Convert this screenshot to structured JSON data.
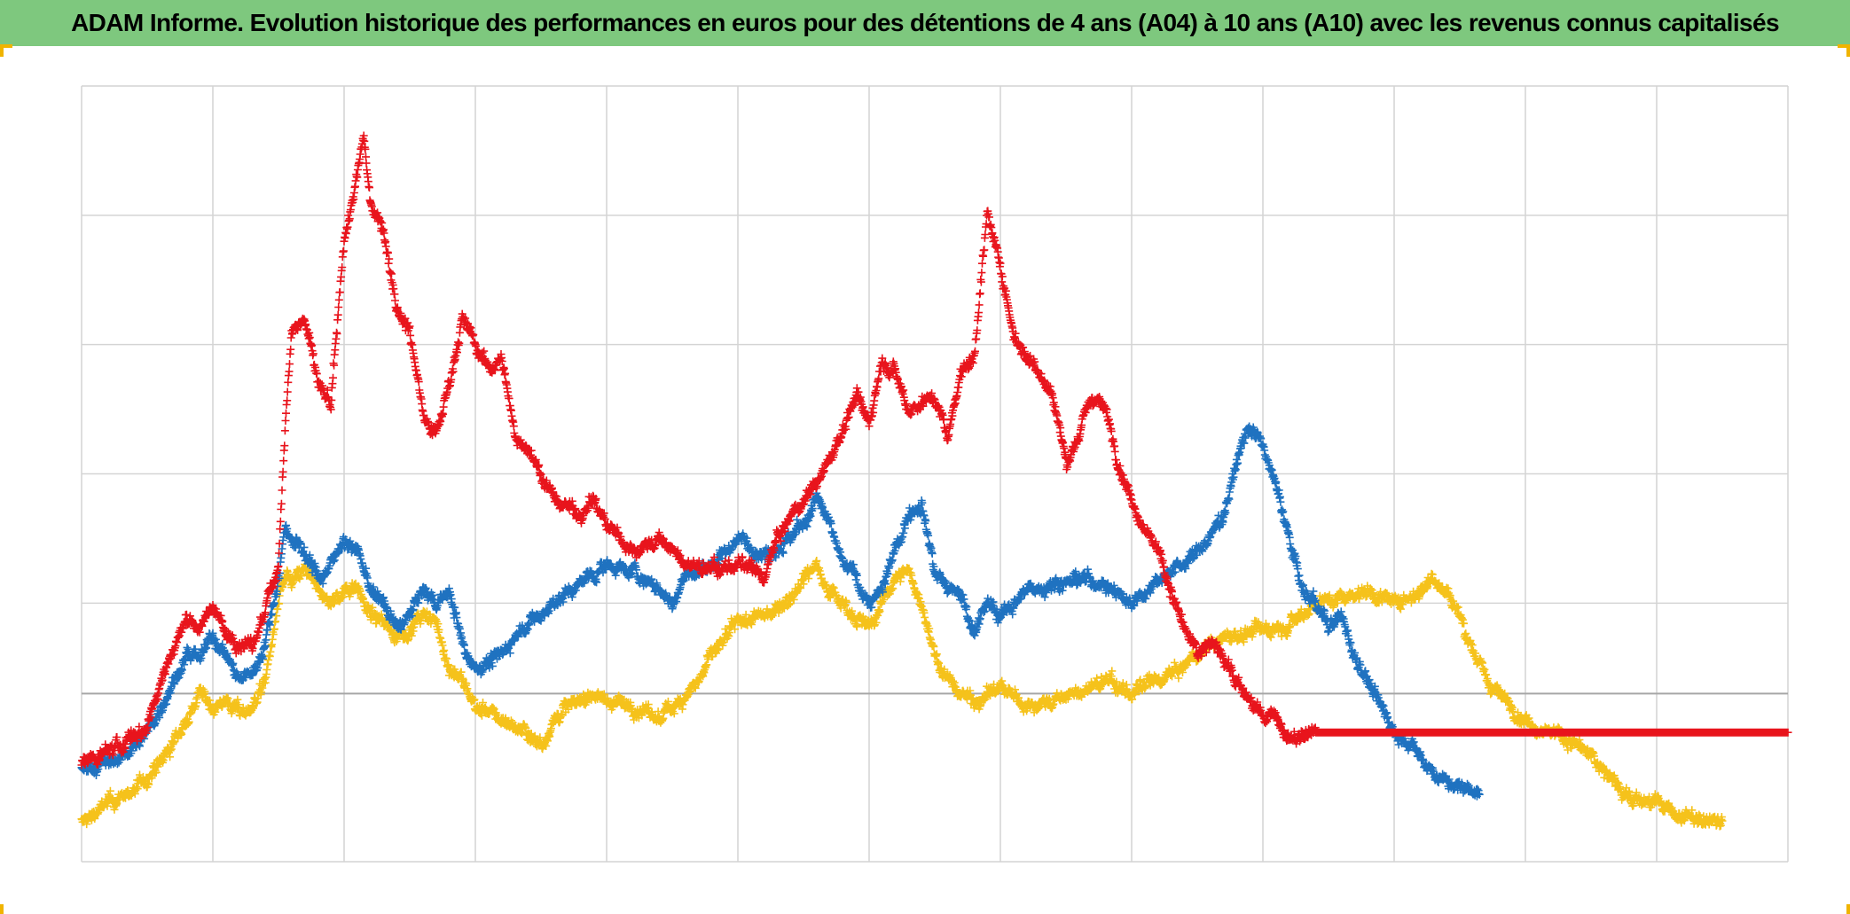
{
  "chart_data": {
    "type": "scatter",
    "title": "ADAM Informe. Evolution historique des performances en euros pour des détentions de 4 ans (A04) à 10 ans (A10) avec les revenus connus capitalisés",
    "xlabel": "",
    "ylabel": "",
    "xlim": [
      0,
      13
    ],
    "ylim": [
      -1.3,
      4.7
    ],
    "baseline_y": 0,
    "grid": true,
    "legend": "none",
    "marker": "+",
    "series": [
      {
        "name": "red",
        "color": "#e8141c",
        "points": [
          [
            0.0,
            -0.55
          ],
          [
            0.3,
            -0.4
          ],
          [
            0.5,
            -0.25
          ],
          [
            0.6,
            0.1
          ],
          [
            0.8,
            0.6
          ],
          [
            0.9,
            0.5
          ],
          [
            1.0,
            0.7
          ],
          [
            1.1,
            0.45
          ],
          [
            1.2,
            0.4
          ],
          [
            1.3,
            0.35
          ],
          [
            1.4,
            0.65
          ],
          [
            1.5,
            1.0
          ],
          [
            1.55,
            2.1
          ],
          [
            1.6,
            2.8
          ],
          [
            1.7,
            2.9
          ],
          [
            1.8,
            2.4
          ],
          [
            1.9,
            2.2
          ],
          [
            2.0,
            3.5
          ],
          [
            2.1,
            4.0
          ],
          [
            2.15,
            4.3
          ],
          [
            2.2,
            3.8
          ],
          [
            2.3,
            3.6
          ],
          [
            2.4,
            3.0
          ],
          [
            2.5,
            2.8
          ],
          [
            2.6,
            2.2
          ],
          [
            2.7,
            2.0
          ],
          [
            2.8,
            2.4
          ],
          [
            2.9,
            2.9
          ],
          [
            3.0,
            2.7
          ],
          [
            3.1,
            2.5
          ],
          [
            3.2,
            2.6
          ],
          [
            3.3,
            2.0
          ],
          [
            3.4,
            1.9
          ],
          [
            3.5,
            1.7
          ],
          [
            3.6,
            1.5
          ],
          [
            3.8,
            1.4
          ],
          [
            3.9,
            1.5
          ],
          [
            4.0,
            1.3
          ],
          [
            4.2,
            1.1
          ],
          [
            4.4,
            1.2
          ],
          [
            4.6,
            1.0
          ],
          [
            4.8,
            0.95
          ],
          [
            5.0,
            1.0
          ],
          [
            5.2,
            0.9
          ],
          [
            5.3,
            1.2
          ],
          [
            5.5,
            1.5
          ],
          [
            5.7,
            1.8
          ],
          [
            5.9,
            2.3
          ],
          [
            6.0,
            2.1
          ],
          [
            6.1,
            2.6
          ],
          [
            6.2,
            2.5
          ],
          [
            6.3,
            2.2
          ],
          [
            6.5,
            2.3
          ],
          [
            6.6,
            2.0
          ],
          [
            6.7,
            2.5
          ],
          [
            6.8,
            2.6
          ],
          [
            6.85,
            3.2
          ],
          [
            6.9,
            3.7
          ],
          [
            7.0,
            3.3
          ],
          [
            7.1,
            2.8
          ],
          [
            7.2,
            2.6
          ],
          [
            7.3,
            2.5
          ],
          [
            7.4,
            2.3
          ],
          [
            7.5,
            1.8
          ],
          [
            7.6,
            2.0
          ],
          [
            7.7,
            2.3
          ],
          [
            7.8,
            2.2
          ],
          [
            7.9,
            1.8
          ],
          [
            8.0,
            1.5
          ],
          [
            8.1,
            1.3
          ],
          [
            8.2,
            1.1
          ],
          [
            8.3,
            0.8
          ],
          [
            8.4,
            0.5
          ],
          [
            8.5,
            0.3
          ],
          [
            8.6,
            0.4
          ],
          [
            8.7,
            0.3
          ],
          [
            8.8,
            0.1
          ],
          [
            8.9,
            -0.05
          ],
          [
            9.0,
            -0.2
          ],
          [
            9.1,
            -0.15
          ],
          [
            9.2,
            -0.38
          ],
          [
            9.3,
            -0.33
          ],
          [
            9.4,
            -0.3
          ],
          [
            13.0,
            -0.3
          ]
        ]
      },
      {
        "name": "blue",
        "color": "#1f72c0",
        "points": [
          [
            0.0,
            -0.6
          ],
          [
            0.3,
            -0.5
          ],
          [
            0.5,
            -0.3
          ],
          [
            0.6,
            -0.1
          ],
          [
            0.8,
            0.3
          ],
          [
            0.9,
            0.25
          ],
          [
            1.0,
            0.45
          ],
          [
            1.1,
            0.3
          ],
          [
            1.2,
            0.1
          ],
          [
            1.3,
            0.15
          ],
          [
            1.4,
            0.4
          ],
          [
            1.5,
            0.9
          ],
          [
            1.55,
            1.3
          ],
          [
            1.6,
            1.2
          ],
          [
            1.7,
            1.1
          ],
          [
            1.8,
            0.9
          ],
          [
            1.9,
            1.0
          ],
          [
            2.0,
            1.2
          ],
          [
            2.1,
            1.1
          ],
          [
            2.2,
            0.8
          ],
          [
            2.3,
            0.7
          ],
          [
            2.4,
            0.5
          ],
          [
            2.5,
            0.6
          ],
          [
            2.6,
            0.8
          ],
          [
            2.7,
            0.7
          ],
          [
            2.8,
            0.8
          ],
          [
            2.9,
            0.4
          ],
          [
            3.0,
            0.2
          ],
          [
            3.1,
            0.25
          ],
          [
            3.2,
            0.3
          ],
          [
            3.3,
            0.45
          ],
          [
            3.4,
            0.55
          ],
          [
            3.5,
            0.6
          ],
          [
            3.6,
            0.7
          ],
          [
            3.8,
            0.85
          ],
          [
            4.0,
            1.0
          ],
          [
            4.2,
            0.95
          ],
          [
            4.4,
            0.8
          ],
          [
            4.5,
            0.7
          ],
          [
            4.6,
            0.9
          ],
          [
            4.8,
            1.0
          ],
          [
            5.0,
            1.2
          ],
          [
            5.2,
            1.1
          ],
          [
            5.4,
            1.2
          ],
          [
            5.5,
            1.3
          ],
          [
            5.6,
            1.5
          ],
          [
            5.7,
            1.3
          ],
          [
            5.8,
            1.0
          ],
          [
            5.9,
            0.9
          ],
          [
            6.0,
            0.7
          ],
          [
            6.1,
            0.8
          ],
          [
            6.2,
            1.1
          ],
          [
            6.3,
            1.4
          ],
          [
            6.4,
            1.5
          ],
          [
            6.5,
            0.95
          ],
          [
            6.6,
            0.8
          ],
          [
            6.7,
            0.75
          ],
          [
            6.8,
            0.5
          ],
          [
            6.9,
            0.7
          ],
          [
            7.0,
            0.6
          ],
          [
            7.2,
            0.8
          ],
          [
            7.4,
            0.85
          ],
          [
            7.6,
            0.9
          ],
          [
            7.8,
            0.85
          ],
          [
            8.0,
            0.7
          ],
          [
            8.2,
            0.9
          ],
          [
            8.4,
            1.0
          ],
          [
            8.6,
            1.2
          ],
          [
            8.7,
            1.4
          ],
          [
            8.8,
            1.8
          ],
          [
            8.9,
            2.1
          ],
          [
            9.0,
            1.9
          ],
          [
            9.1,
            1.6
          ],
          [
            9.2,
            1.2
          ],
          [
            9.3,
            0.8
          ],
          [
            9.4,
            0.7
          ],
          [
            9.5,
            0.5
          ],
          [
            9.6,
            0.6
          ],
          [
            9.7,
            0.3
          ],
          [
            9.8,
            0.1
          ],
          [
            9.9,
            -0.1
          ],
          [
            10.0,
            -0.3
          ],
          [
            10.1,
            -0.35
          ],
          [
            10.2,
            -0.5
          ],
          [
            10.3,
            -0.6
          ],
          [
            10.4,
            -0.7
          ],
          [
            10.5,
            -0.72
          ],
          [
            10.6,
            -0.75
          ],
          [
            10.65,
            -0.75
          ]
        ]
      },
      {
        "name": "yellow",
        "color": "#f5c21b",
        "points": [
          [
            0.0,
            -1.0
          ],
          [
            0.2,
            -0.85
          ],
          [
            0.4,
            -0.75
          ],
          [
            0.6,
            -0.55
          ],
          [
            0.8,
            -0.2
          ],
          [
            0.9,
            0.0
          ],
          [
            1.0,
            -0.1
          ],
          [
            1.1,
            -0.05
          ],
          [
            1.2,
            -0.15
          ],
          [
            1.3,
            -0.1
          ],
          [
            1.4,
            0.1
          ],
          [
            1.5,
            0.7
          ],
          [
            1.55,
            0.9
          ],
          [
            1.6,
            0.85
          ],
          [
            1.7,
            0.95
          ],
          [
            1.8,
            0.8
          ],
          [
            1.9,
            0.7
          ],
          [
            2.0,
            0.8
          ],
          [
            2.1,
            0.85
          ],
          [
            2.2,
            0.6
          ],
          [
            2.3,
            0.55
          ],
          [
            2.4,
            0.45
          ],
          [
            2.5,
            0.5
          ],
          [
            2.6,
            0.6
          ],
          [
            2.7,
            0.55
          ],
          [
            2.8,
            0.2
          ],
          [
            2.9,
            0.1
          ],
          [
            3.0,
            -0.1
          ],
          [
            3.1,
            -0.15
          ],
          [
            3.2,
            -0.2
          ],
          [
            3.3,
            -0.25
          ],
          [
            3.4,
            -0.3
          ],
          [
            3.5,
            -0.4
          ],
          [
            3.6,
            -0.2
          ],
          [
            3.7,
            -0.1
          ],
          [
            3.8,
            -0.05
          ],
          [
            3.9,
            0.0
          ],
          [
            4.0,
            -0.05
          ],
          [
            4.2,
            -0.1
          ],
          [
            4.4,
            -0.2
          ],
          [
            4.5,
            -0.1
          ],
          [
            4.6,
            0.0
          ],
          [
            4.7,
            0.1
          ],
          [
            4.8,
            0.3
          ],
          [
            4.9,
            0.4
          ],
          [
            5.0,
            0.55
          ],
          [
            5.2,
            0.6
          ],
          [
            5.4,
            0.75
          ],
          [
            5.5,
            0.9
          ],
          [
            5.6,
            1.0
          ],
          [
            5.7,
            0.8
          ],
          [
            5.8,
            0.7
          ],
          [
            5.9,
            0.6
          ],
          [
            6.0,
            0.5
          ],
          [
            6.1,
            0.7
          ],
          [
            6.2,
            0.9
          ],
          [
            6.3,
            0.95
          ],
          [
            6.4,
            0.7
          ],
          [
            6.5,
            0.3
          ],
          [
            6.6,
            0.1
          ],
          [
            6.7,
            0.0
          ],
          [
            6.8,
            -0.05
          ],
          [
            6.9,
            0.0
          ],
          [
            7.0,
            0.05
          ],
          [
            7.2,
            -0.1
          ],
          [
            7.4,
            -0.05
          ],
          [
            7.6,
            0.0
          ],
          [
            7.8,
            0.1
          ],
          [
            8.0,
            0.0
          ],
          [
            8.2,
            0.1
          ],
          [
            8.4,
            0.2
          ],
          [
            8.6,
            0.4
          ],
          [
            8.8,
            0.45
          ],
          [
            9.0,
            0.5
          ],
          [
            9.2,
            0.55
          ],
          [
            9.4,
            0.7
          ],
          [
            9.6,
            0.75
          ],
          [
            9.8,
            0.8
          ],
          [
            10.0,
            0.7
          ],
          [
            10.2,
            0.8
          ],
          [
            10.3,
            0.9
          ],
          [
            10.4,
            0.8
          ],
          [
            10.5,
            0.6
          ],
          [
            10.6,
            0.35
          ],
          [
            10.7,
            0.1
          ],
          [
            10.8,
            0.0
          ],
          [
            10.9,
            -0.1
          ],
          [
            11.0,
            -0.2
          ],
          [
            11.2,
            -0.3
          ],
          [
            11.4,
            -0.4
          ],
          [
            11.6,
            -0.6
          ],
          [
            11.8,
            -0.8
          ],
          [
            12.0,
            -0.85
          ],
          [
            12.2,
            -0.95
          ],
          [
            12.4,
            -1.0
          ],
          [
            12.5,
            -0.98
          ]
        ]
      }
    ]
  }
}
